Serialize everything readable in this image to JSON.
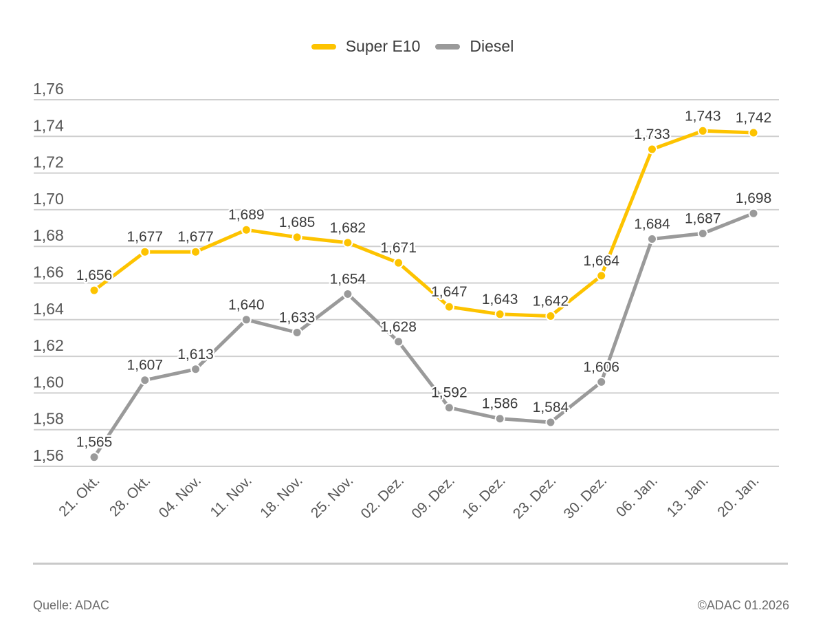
{
  "legend": {
    "items": [
      {
        "label": "Super E10",
        "color": "#FDC300"
      },
      {
        "label": "Diesel",
        "color": "#9A9A9A"
      }
    ]
  },
  "footer": {
    "source": "Quelle: ADAC",
    "copyright": "©ADAC 01.2026"
  },
  "chart_data": {
    "type": "line",
    "title": "",
    "categories": [
      "21. Okt.",
      "28. Okt.",
      "04. Nov.",
      "11. Nov.",
      "18. Nov.",
      "25. Nov.",
      "02. Dez.",
      "09. Dez.",
      "16. Dez.",
      "23. Dez.",
      "30. Dez.",
      "06. Jan.",
      "13. Jan.",
      "20. Jan."
    ],
    "series": [
      {
        "name": "Super E10",
        "color": "#FDC300",
        "values": [
          1.656,
          1.677,
          1.677,
          1.689,
          1.685,
          1.682,
          1.671,
          1.647,
          1.643,
          1.642,
          1.664,
          1.733,
          1.743,
          1.742
        ]
      },
      {
        "name": "Diesel",
        "color": "#9A9A9A",
        "values": [
          1.565,
          1.607,
          1.613,
          1.64,
          1.633,
          1.654,
          1.628,
          1.592,
          1.586,
          1.584,
          1.606,
          1.684,
          1.687,
          1.698
        ]
      }
    ],
    "xlabel": "",
    "ylabel": "",
    "ylim": [
      1.56,
      1.76
    ],
    "y_tick_step": 0.02,
    "y_tick_labels": [
      "1,56",
      "1,58",
      "1,60",
      "1,62",
      "1,64",
      "1,66",
      "1,68",
      "1,70",
      "1,72",
      "1,74",
      "1,76"
    ],
    "grid": true,
    "legend_position": "top",
    "data_labels": true,
    "number_format": "comma-decimal",
    "grid_color": "#CFCFCF",
    "axis_label_color": "#575757",
    "data_label_color": "#3A3A3A"
  }
}
